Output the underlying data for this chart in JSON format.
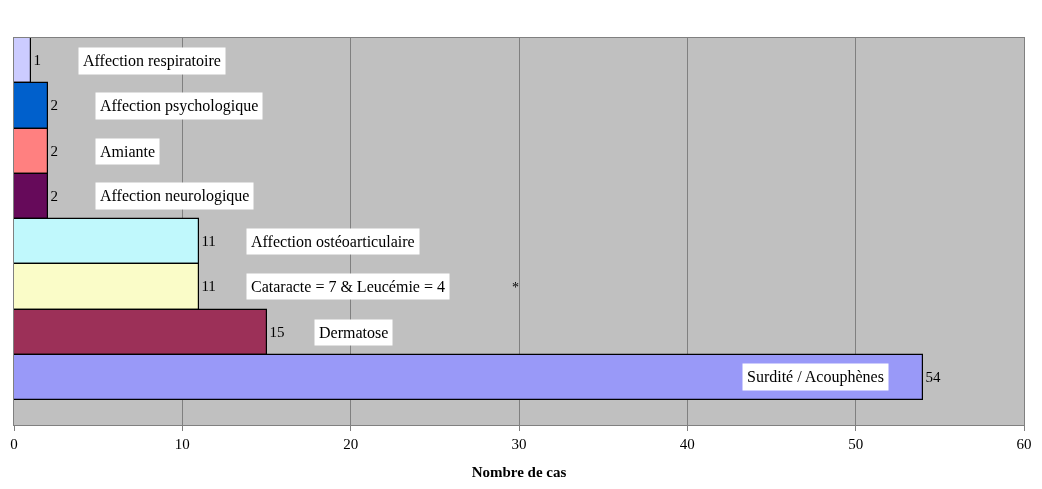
{
  "chart_data": {
    "type": "bar",
    "orientation": "horizontal",
    "xlabel": "Nombre de cas",
    "categories": [
      "Affection respiratoire",
      "Affection psychologique",
      "Amiante",
      "Affection neurologique",
      "Affection ostéoarticulaire",
      "Cataracte = 7 & Leucémie = 4",
      "Dermatose",
      "Surdité / Acouphènes"
    ],
    "values": [
      1,
      2,
      2,
      2,
      11,
      11,
      15,
      54
    ],
    "colors": [
      "#ccccff",
      "#0060cc",
      "#ff8080",
      "#660a5a",
      "#c0f8fc",
      "#fafcc8",
      "#9c3058",
      "#9999f8"
    ],
    "xlim": [
      0,
      60
    ],
    "xticks": [
      0,
      10,
      20,
      30,
      40,
      50,
      60
    ],
    "grid": "x",
    "data_labels": true,
    "tick_labels": "x",
    "annotations": [
      "*"
    ]
  }
}
